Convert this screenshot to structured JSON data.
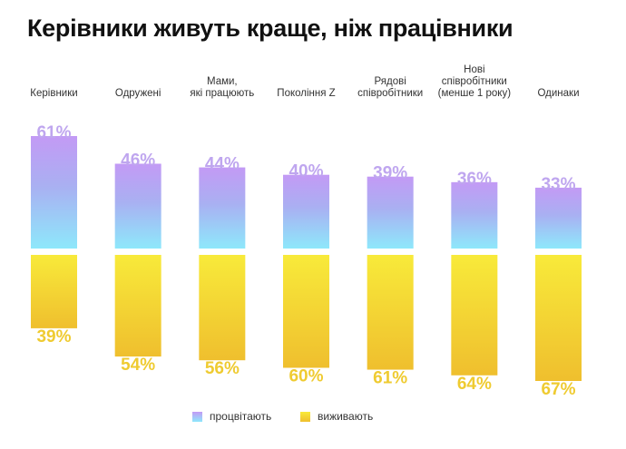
{
  "title": "Керівники живуть краще, ніж працівники",
  "colors": {
    "thrive_top": "#c39af5",
    "thrive_mid": "#a9b0f2",
    "thrive_bottom": "#8ee8fb",
    "survive_top": "#f8ea3a",
    "survive_bottom": "#efbf2e",
    "thrive_label": "#bfa6ef",
    "survive_label": "#efcb31"
  },
  "legend": {
    "thrive": "процвітають",
    "survive": "виживають"
  },
  "chart_data": {
    "type": "bar",
    "title": "Керівники живуть краще, ніж працівники",
    "categories": [
      [
        "Керівники"
      ],
      [
        "Одружені"
      ],
      [
        "Мами,",
        "які працюють"
      ],
      [
        "Покоління Z"
      ],
      [
        "Рядові",
        "співробітники"
      ],
      [
        "Нові",
        "співробітники",
        "(менше 1 року)"
      ],
      [
        "Одинаки"
      ]
    ],
    "series": [
      {
        "name": "процвітають",
        "direction": "up",
        "values": [
          61,
          46,
          44,
          40,
          39,
          36,
          33
        ],
        "labels": [
          "61%",
          "46%",
          "44%",
          "40%",
          "39%",
          "36%",
          "33%"
        ]
      },
      {
        "name": "виживають",
        "direction": "down",
        "values": [
          39,
          54,
          56,
          60,
          61,
          64,
          67
        ],
        "labels": [
          "39%",
          "54%",
          "56%",
          "60%",
          "61%",
          "64%",
          "67%"
        ]
      }
    ],
    "ylim": [
      0,
      100
    ],
    "grid": false,
    "legend_position": "bottom-center"
  }
}
